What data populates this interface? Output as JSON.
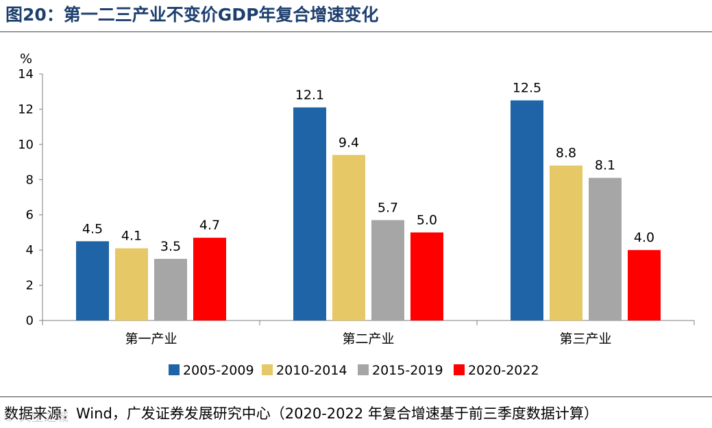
{
  "figure": {
    "title": "图20：第一二三产业不变价GDP年复合增速变化",
    "source": "数据来源：Wind，广发证券发展研究中心（2020-2022 年复合增速基于前三季度数据计算）",
    "watermark": "© 天空之城"
  },
  "chart_data": {
    "type": "bar",
    "title": "第一二三产业不变价GDP年复合增速变化",
    "ylabel": "%",
    "ylim": [
      0,
      14
    ],
    "yticks": [
      0,
      2,
      4,
      6,
      8,
      10,
      12,
      14
    ],
    "categories": [
      "第一产业",
      "第二产业",
      "第三产业"
    ],
    "series": [
      {
        "name": "2005-2009",
        "color": "#1f64a6",
        "values": [
          4.5,
          12.1,
          12.5
        ],
        "labels": [
          "4.5",
          "12.1",
          "12.5"
        ]
      },
      {
        "name": "2010-2014",
        "color": "#e6c866",
        "values": [
          4.1,
          9.4,
          8.8
        ],
        "labels": [
          "4.1",
          "9.4",
          "8.8"
        ]
      },
      {
        "name": "2015-2019",
        "color": "#a6a6a6",
        "values": [
          3.5,
          5.7,
          8.1
        ],
        "labels": [
          "3.5",
          "5.7",
          "8.1"
        ]
      },
      {
        "name": "2020-2022",
        "color": "#ff0000",
        "values": [
          4.7,
          5.0,
          4.0
        ],
        "labels": [
          "4.7",
          "5.0",
          "4.0"
        ]
      }
    ],
    "legend_position": "bottom"
  }
}
